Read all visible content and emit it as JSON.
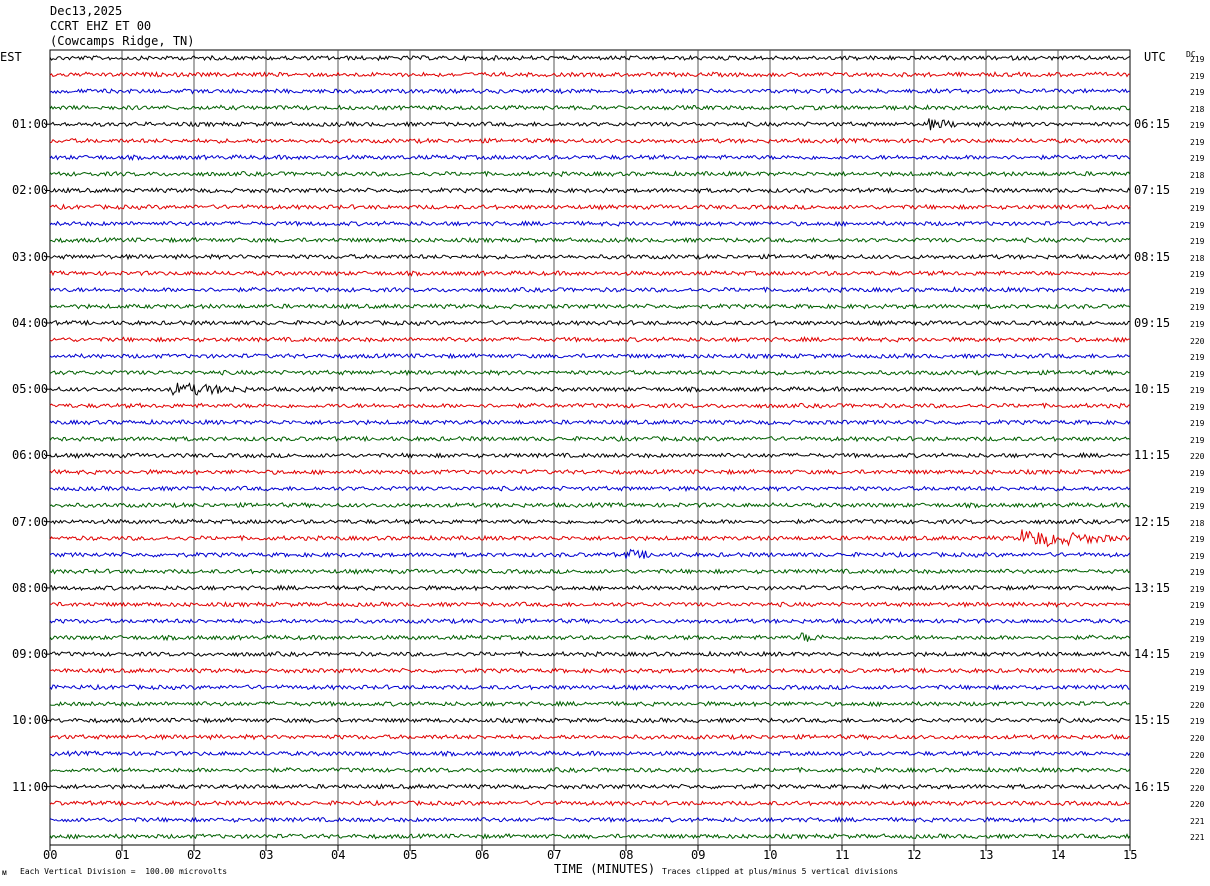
{
  "header": {
    "date": "Dec13,2025",
    "station": "CCRT EHZ ET 00",
    "location": "(Cowcamps Ridge, TN)"
  },
  "left_tz": "EST",
  "right_tz": "UTC",
  "dc_label": "DC",
  "colors": [
    "#000000",
    "#e00000",
    "#0000d0",
    "#006000"
  ],
  "footer": {
    "scale_note": "Each Vertical Division =  100.00 microvolts",
    "clip_note": "Traces clipped at plus/minus 5 vertical divisions",
    "corner_mark": "ᴍ"
  },
  "chart_data": {
    "type": "line",
    "title": "CCRT EHZ ET 00",
    "xlabel": "TIME (MINUTES)",
    "x_ticks": [
      "00",
      "01",
      "02",
      "03",
      "04",
      "05",
      "06",
      "07",
      "08",
      "09",
      "10",
      "11",
      "12",
      "13",
      "14",
      "15"
    ],
    "xlim": [
      0,
      15
    ],
    "trace_count": 48,
    "left_hour_labels": [
      "01:00",
      "02:00",
      "03:00",
      "04:00",
      "05:00",
      "06:00",
      "07:00",
      "08:00",
      "09:00",
      "10:00",
      "11:00"
    ],
    "right_hour_labels": [
      "06:15",
      "07:15",
      "08:15",
      "09:15",
      "10:15",
      "11:15",
      "12:15",
      "13:15",
      "14:15",
      "15:15",
      "16:15"
    ],
    "dc_values": [
      "219",
      "219",
      "219",
      "218",
      "219",
      "219",
      "219",
      "218",
      "219",
      "219",
      "219",
      "219",
      "218",
      "219",
      "219",
      "219",
      "219",
      "220",
      "219",
      "219",
      "219",
      "219",
      "219",
      "219",
      "220",
      "219",
      "219",
      "219",
      "218",
      "219",
      "219",
      "219",
      "219",
      "219",
      "219",
      "219",
      "219",
      "219",
      "219",
      "220",
      "219",
      "220",
      "220",
      "220",
      "220",
      "220",
      "221",
      "221"
    ],
    "events": [
      {
        "trace": 20,
        "minute": 1.7,
        "duration_min": 1.2,
        "amplitude": 1.8
      },
      {
        "trace": 29,
        "minute": 13.5,
        "duration_min": 1.5,
        "amplitude": 2.5
      },
      {
        "trace": 30,
        "minute": 8.0,
        "duration_min": 0.5,
        "amplitude": 1.3
      },
      {
        "trace": 4,
        "minute": 12.2,
        "duration_min": 0.5,
        "amplitude": 1.4
      },
      {
        "trace": 35,
        "minute": 10.4,
        "duration_min": 0.4,
        "amplitude": 1.3
      }
    ]
  }
}
